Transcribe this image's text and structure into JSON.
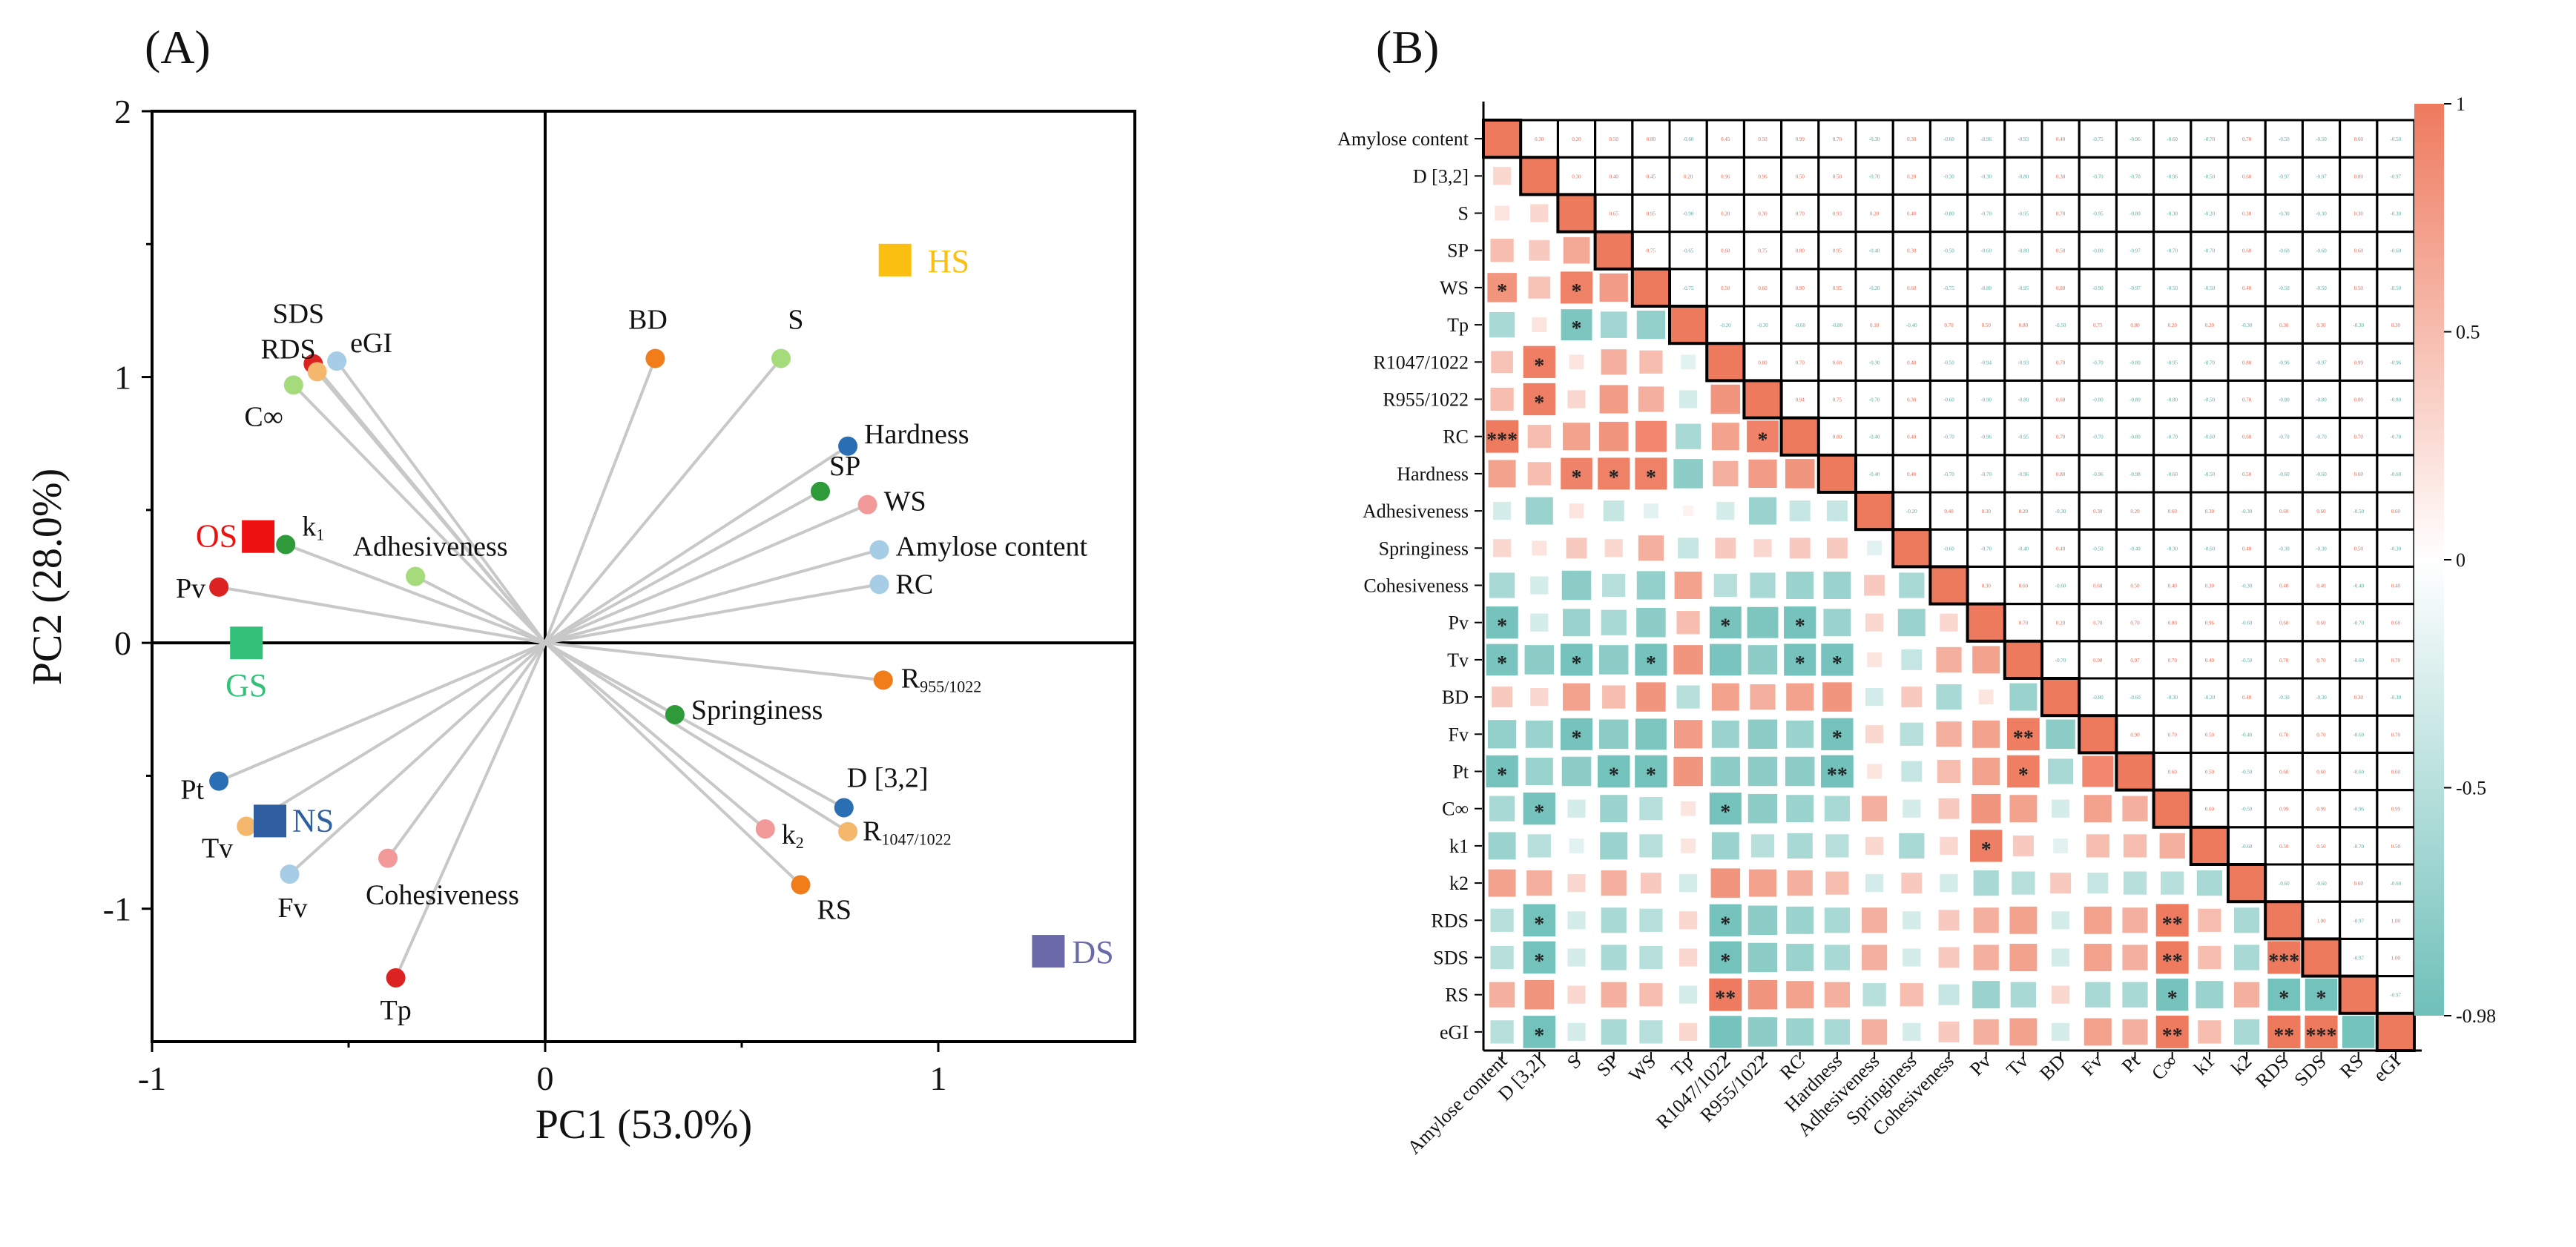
{
  "panels": {
    "a_label": "(A)",
    "b_label": "(B)"
  },
  "colors": {
    "loading_line": "#c8c8c8",
    "heat_pos": "#ee7a5e",
    "heat_neg": "#6fc0b9",
    "heat_mid": "#ffffff"
  },
  "chart_data": [
    {
      "type": "scatter",
      "subtype": "pca-biplot",
      "xlabel": "PC1 (53.0%)",
      "ylabel": "PC2 (28.0%)",
      "xlim": [
        -1,
        1.5
      ],
      "ylim": [
        -1.5,
        2
      ],
      "xticks": [
        -1,
        0,
        1
      ],
      "yticks": [
        -1,
        0,
        1,
        2
      ],
      "variables": [
        {
          "name": "SDS",
          "x": -0.59,
          "y": 1.05,
          "color": "#dd2222"
        },
        {
          "name": "RDS",
          "x": -0.58,
          "y": 1.02,
          "color": "#f5b76b"
        },
        {
          "name": "eGI",
          "x": -0.53,
          "y": 1.06,
          "color": "#a7cce6"
        },
        {
          "name": "C∞",
          "x": -0.64,
          "y": 0.97,
          "color": "#a6db7b"
        },
        {
          "name": "k1",
          "x": -0.66,
          "y": 0.37,
          "color": "#2e9a3a"
        },
        {
          "name": "Pv",
          "x": -0.83,
          "y": 0.21,
          "color": "#dd2222"
        },
        {
          "name": "Adhesiveness",
          "x": -0.33,
          "y": 0.25,
          "color": "#a6db7b"
        },
        {
          "name": "BD",
          "x": 0.28,
          "y": 1.07,
          "color": "#f07d1a"
        },
        {
          "name": "S",
          "x": 0.6,
          "y": 1.07,
          "color": "#a6db7b"
        },
        {
          "name": "Hardness",
          "x": 0.77,
          "y": 0.74,
          "color": "#2a6fb3"
        },
        {
          "name": "SP",
          "x": 0.7,
          "y": 0.57,
          "color": "#2e9a3a"
        },
        {
          "name": "WS",
          "x": 0.82,
          "y": 0.52,
          "color": "#f29a9a"
        },
        {
          "name": "Amylose content",
          "x": 0.85,
          "y": 0.35,
          "color": "#a7cce6"
        },
        {
          "name": "RC",
          "x": 0.85,
          "y": 0.22,
          "color": "#a7cce6"
        },
        {
          "name": "R955/1022",
          "x": 0.86,
          "y": -0.14,
          "color": "#f07d1a"
        },
        {
          "name": "Springiness",
          "x": 0.33,
          "y": -0.27,
          "color": "#2e9a3a"
        },
        {
          "name": "D [3,2]",
          "x": 0.76,
          "y": -0.62,
          "color": "#2a6fb3"
        },
        {
          "name": "R1047/1022",
          "x": 0.77,
          "y": -0.71,
          "color": "#f5b76b"
        },
        {
          "name": "k2",
          "x": 0.56,
          "y": -0.7,
          "color": "#f29a9a"
        },
        {
          "name": "RS",
          "x": 0.65,
          "y": -0.91,
          "color": "#f07d1a"
        },
        {
          "name": "Pt",
          "x": -0.83,
          "y": -0.52,
          "color": "#2a6fb3"
        },
        {
          "name": "Tv",
          "x": -0.76,
          "y": -0.69,
          "color": "#f5b76b"
        },
        {
          "name": "Fv",
          "x": -0.65,
          "y": -0.87,
          "color": "#a7cce6"
        },
        {
          "name": "Cohesiveness",
          "x": -0.4,
          "y": -0.81,
          "color": "#f29a9a"
        },
        {
          "name": "Tp",
          "x": -0.38,
          "y": -1.26,
          "color": "#dd2222"
        }
      ],
      "groups": [
        {
          "name": "HS",
          "x": 0.89,
          "y": 1.44,
          "color": "#fbbf12"
        },
        {
          "name": "OS",
          "x": -0.73,
          "y": 0.4,
          "color": "#ee1111"
        },
        {
          "name": "GS",
          "x": -0.76,
          "y": 0.0,
          "color": "#33c17a"
        },
        {
          "name": "NS",
          "x": -0.7,
          "y": -0.67,
          "color": "#2f5fa0"
        },
        {
          "name": "DS",
          "x": 1.28,
          "y": -1.16,
          "color": "#6a6aa8"
        }
      ]
    },
    {
      "type": "heatmap",
      "subtype": "correlation-matrix",
      "variables": [
        "Amylose content",
        "D [3,2]",
        "S",
        "SP",
        "WS",
        "Tp",
        "R1047/1022",
        "R955/1022",
        "RC",
        "Hardness",
        "Adhesiveness",
        "Springiness",
        "Cohesiveness",
        "Pv",
        "Tv",
        "BD",
        "Fv",
        "Pt",
        "C∞",
        "k1",
        "k2",
        "RDS",
        "SDS",
        "RS",
        "eGI"
      ],
      "lower": [
        [],
        [
          0.3
        ],
        [
          0.2,
          0.3
        ],
        [
          0.5,
          0.4,
          0.65
        ],
        [
          0.8,
          0.45,
          0.95,
          0.75
        ],
        [
          -0.6,
          0.2,
          -0.9,
          -0.65,
          -0.75
        ],
        [
          0.45,
          0.96,
          0.2,
          0.6,
          0.5,
          -0.2
        ],
        [
          0.5,
          0.96,
          0.3,
          0.75,
          0.6,
          -0.3,
          0.8
        ],
        [
          0.99,
          0.5,
          0.7,
          0.8,
          0.9,
          -0.6,
          0.7,
          0.94
        ],
        [
          0.7,
          0.5,
          0.93,
          0.95,
          0.95,
          -0.8,
          0.6,
          0.75,
          0.8
        ],
        [
          -0.3,
          -0.7,
          0.2,
          -0.4,
          -0.2,
          0.1,
          -0.3,
          -0.7,
          -0.4,
          -0.4
        ],
        [
          0.3,
          0.2,
          0.4,
          0.3,
          0.6,
          -0.4,
          0.4,
          0.3,
          0.4,
          0.4,
          -0.2
        ],
        [
          -0.6,
          -0.3,
          -0.8,
          -0.5,
          -0.75,
          0.7,
          -0.5,
          -0.6,
          -0.7,
          -0.7,
          0.4,
          -0.6
        ],
        [
          -0.96,
          -0.3,
          -0.7,
          -0.6,
          -0.8,
          0.5,
          -0.94,
          -0.9,
          -0.96,
          -0.7,
          0.3,
          -0.7,
          0.3
        ],
        [
          -0.93,
          -0.8,
          -0.95,
          -0.8,
          -0.95,
          0.8,
          -0.93,
          -0.8,
          -0.95,
          -0.96,
          0.2,
          -0.4,
          0.6,
          0.7
        ],
        [
          0.4,
          0.3,
          0.7,
          0.5,
          0.8,
          -0.5,
          0.7,
          0.6,
          0.7,
          0.8,
          -0.3,
          0.4,
          -0.6,
          0.2,
          -0.7
        ],
        [
          -0.75,
          -0.7,
          -0.95,
          -0.8,
          -0.9,
          0.75,
          -0.7,
          -0.8,
          -0.7,
          -0.96,
          0.3,
          -0.5,
          0.6,
          0.7,
          0.98,
          -0.8
        ],
        [
          -0.96,
          -0.7,
          -0.8,
          -0.97,
          -0.97,
          0.8,
          -0.8,
          -0.8,
          -0.8,
          -0.98,
          0.2,
          -0.4,
          0.5,
          0.7,
          0.97,
          -0.6,
          0.9
        ],
        [
          -0.6,
          -0.96,
          -0.3,
          -0.7,
          -0.5,
          0.2,
          -0.95,
          -0.8,
          -0.7,
          -0.6,
          0.6,
          -0.3,
          0.4,
          0.8,
          0.7,
          -0.3,
          0.7,
          0.6
        ],
        [
          -0.7,
          -0.5,
          -0.2,
          -0.7,
          -0.5,
          0.2,
          -0.7,
          -0.5,
          -0.6,
          -0.5,
          0.3,
          -0.6,
          0.3,
          0.96,
          0.4,
          -0.2,
          0.5,
          0.5,
          0.6
        ],
        [
          0.7,
          0.6,
          0.3,
          0.6,
          0.4,
          -0.3,
          0.8,
          0.7,
          0.6,
          0.5,
          -0.3,
          0.4,
          -0.3,
          -0.6,
          -0.5,
          0.4,
          -0.4,
          -0.5,
          -0.5,
          -0.6
        ],
        [
          -0.5,
          -0.97,
          -0.3,
          -0.6,
          -0.5,
          0.3,
          -0.96,
          -0.8,
          -0.7,
          -0.6,
          0.6,
          -0.3,
          0.4,
          0.6,
          0.7,
          -0.3,
          0.7,
          0.6,
          0.99,
          0.5,
          -0.6
        ],
        [
          -0.5,
          -0.97,
          -0.3,
          -0.6,
          -0.5,
          0.3,
          -0.97,
          -0.8,
          -0.7,
          -0.6,
          0.6,
          -0.3,
          0.4,
          0.6,
          0.7,
          -0.3,
          0.7,
          0.6,
          0.99,
          0.5,
          -0.6,
          1.0
        ],
        [
          0.6,
          0.8,
          0.3,
          0.6,
          0.5,
          -0.3,
          0.99,
          0.8,
          0.7,
          0.6,
          -0.5,
          0.5,
          -0.4,
          -0.7,
          -0.6,
          0.3,
          -0.6,
          -0.6,
          -0.96,
          -0.7,
          0.6,
          -0.97,
          -0.97
        ],
        [
          -0.5,
          -0.97,
          -0.3,
          -0.6,
          -0.5,
          0.3,
          -0.96,
          -0.8,
          -0.7,
          -0.6,
          0.6,
          -0.3,
          0.4,
          0.6,
          0.7,
          -0.3,
          0.7,
          0.6,
          0.99,
          0.5,
          -0.6,
          1.0,
          1.0,
          -0.97
        ]
      ],
      "significance": [
        {
          "row": 4,
          "col": 0,
          "mark": "*"
        },
        {
          "row": 4,
          "col": 2,
          "mark": "*"
        },
        {
          "row": 5,
          "col": 2,
          "mark": "*"
        },
        {
          "row": 6,
          "col": 1,
          "mark": "*"
        },
        {
          "row": 7,
          "col": 1,
          "mark": "*"
        },
        {
          "row": 8,
          "col": 0,
          "mark": "***"
        },
        {
          "row": 8,
          "col": 7,
          "mark": "*"
        },
        {
          "row": 9,
          "col": 2,
          "mark": "*"
        },
        {
          "row": 9,
          "col": 3,
          "mark": "*"
        },
        {
          "row": 9,
          "col": 4,
          "mark": "*"
        },
        {
          "row": 13,
          "col": 0,
          "mark": "*"
        },
        {
          "row": 13,
          "col": 6,
          "mark": "*"
        },
        {
          "row": 13,
          "col": 8,
          "mark": "*"
        },
        {
          "row": 14,
          "col": 0,
          "mark": "*"
        },
        {
          "row": 14,
          "col": 2,
          "mark": "*"
        },
        {
          "row": 14,
          "col": 4,
          "mark": "*"
        },
        {
          "row": 14,
          "col": 8,
          "mark": "*"
        },
        {
          "row": 14,
          "col": 9,
          "mark": "*"
        },
        {
          "row": 16,
          "col": 2,
          "mark": "*"
        },
        {
          "row": 16,
          "col": 9,
          "mark": "*"
        },
        {
          "row": 16,
          "col": 14,
          "mark": "**"
        },
        {
          "row": 17,
          "col": 0,
          "mark": "*"
        },
        {
          "row": 17,
          "col": 3,
          "mark": "*"
        },
        {
          "row": 17,
          "col": 4,
          "mark": "*"
        },
        {
          "row": 17,
          "col": 9,
          "mark": "**"
        },
        {
          "row": 17,
          "col": 14,
          "mark": "*"
        },
        {
          "row": 18,
          "col": 1,
          "mark": "*"
        },
        {
          "row": 18,
          "col": 6,
          "mark": "*"
        },
        {
          "row": 19,
          "col": 13,
          "mark": "*"
        },
        {
          "row": 21,
          "col": 1,
          "mark": "*"
        },
        {
          "row": 21,
          "col": 6,
          "mark": "*"
        },
        {
          "row": 21,
          "col": 18,
          "mark": "**"
        },
        {
          "row": 22,
          "col": 1,
          "mark": "*"
        },
        {
          "row": 22,
          "col": 6,
          "mark": "*"
        },
        {
          "row": 22,
          "col": 18,
          "mark": "**"
        },
        {
          "row": 22,
          "col": 21,
          "mark": "***"
        },
        {
          "row": 23,
          "col": 6,
          "mark": "**"
        },
        {
          "row": 23,
          "col": 18,
          "mark": "*"
        },
        {
          "row": 23,
          "col": 21,
          "mark": "*"
        },
        {
          "row": 23,
          "col": 22,
          "mark": "*"
        },
        {
          "row": 24,
          "col": 1,
          "mark": "*"
        },
        {
          "row": 24,
          "col": 18,
          "mark": "**"
        },
        {
          "row": 24,
          "col": 21,
          "mark": "**"
        },
        {
          "row": 24,
          "col": 22,
          "mark": "***"
        }
      ],
      "colorbar": {
        "min": -0.98,
        "max": 1,
        "ticks": [
          "1",
          "0.5",
          "0",
          "-0.5",
          "-0.98"
        ]
      }
    }
  ]
}
